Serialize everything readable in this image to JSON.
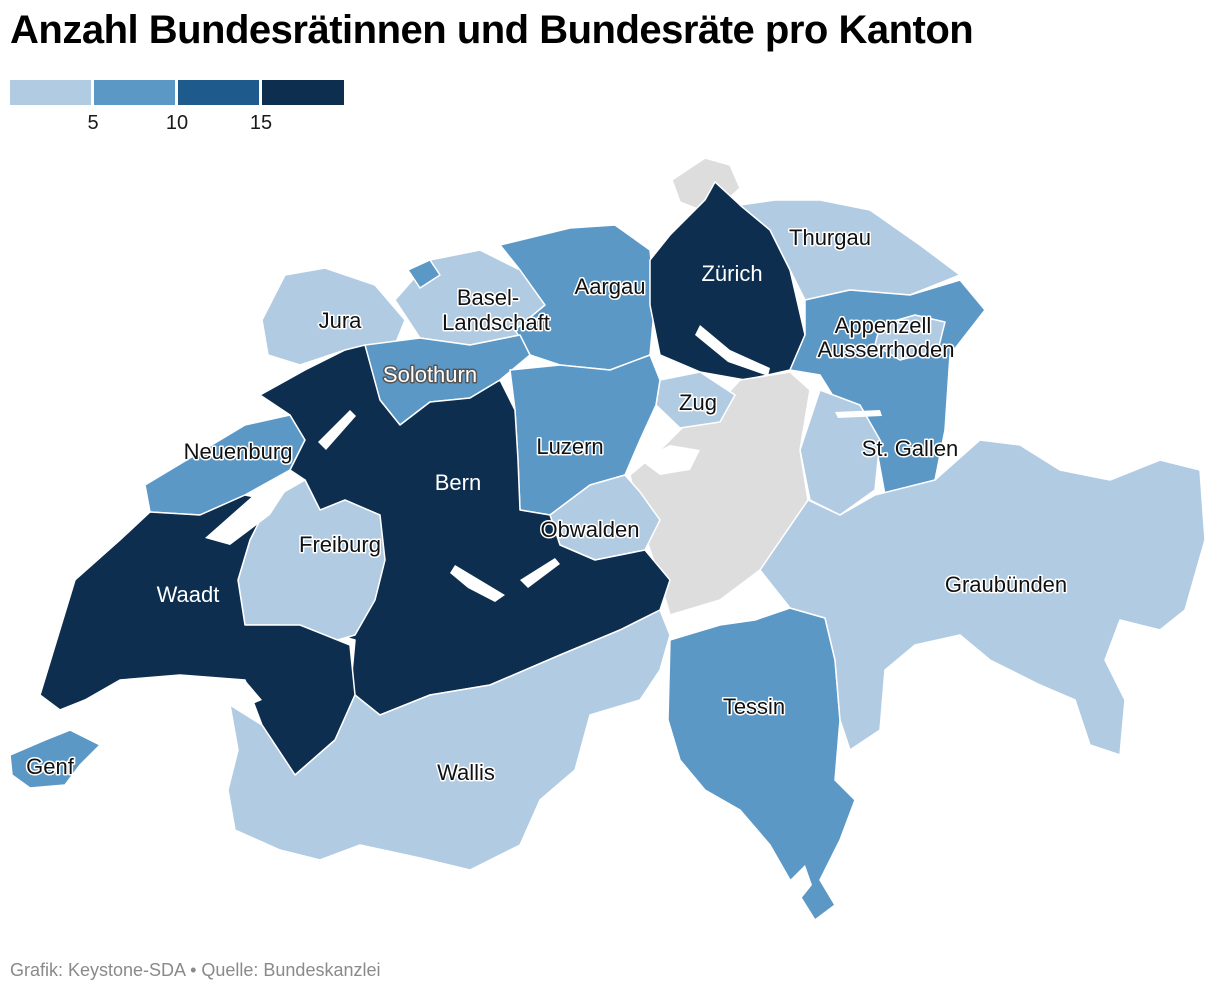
{
  "title": "Anzahl Bundesrätinnen und Bundesräte pro Kanton",
  "legend": {
    "ticks": [
      "5",
      "10",
      "15"
    ],
    "colors": [
      "#b1cbe3",
      "#5b98c6",
      "#1e5b8c",
      "#0d2e4f"
    ]
  },
  "map": {
    "no_data_color": "#dddddd",
    "cantons": [
      {
        "name": "Jura",
        "class": 1
      },
      {
        "name": "Basel-",
        "name2": "Landschaft",
        "class": 1
      },
      {
        "name": "Aargau",
        "class": 2
      },
      {
        "name": "Zürich",
        "class": 4
      },
      {
        "name": "Thurgau",
        "class": 1
      },
      {
        "name": "Appenzell",
        "name2": "Ausserrhoden",
        "class": 2
      },
      {
        "name": "Solothurn",
        "class": 2
      },
      {
        "name": "Zug",
        "class": 1
      },
      {
        "name": "St. Gallen",
        "class": 2
      },
      {
        "name": "Neuenburg",
        "class": 2
      },
      {
        "name": "Luzern",
        "class": 2
      },
      {
        "name": "Bern",
        "class": 4
      },
      {
        "name": "Obwalden",
        "class": 1
      },
      {
        "name": "Freiburg",
        "class": 1
      },
      {
        "name": "Waadt",
        "class": 4
      },
      {
        "name": "Graubünden",
        "class": 1
      },
      {
        "name": "Tessin",
        "class": 2
      },
      {
        "name": "Genf",
        "class": 2
      },
      {
        "name": "Wallis",
        "class": 1
      }
    ]
  },
  "source": "Grafik: Keystone-SDA • Quelle: Bundeskanzlei"
}
